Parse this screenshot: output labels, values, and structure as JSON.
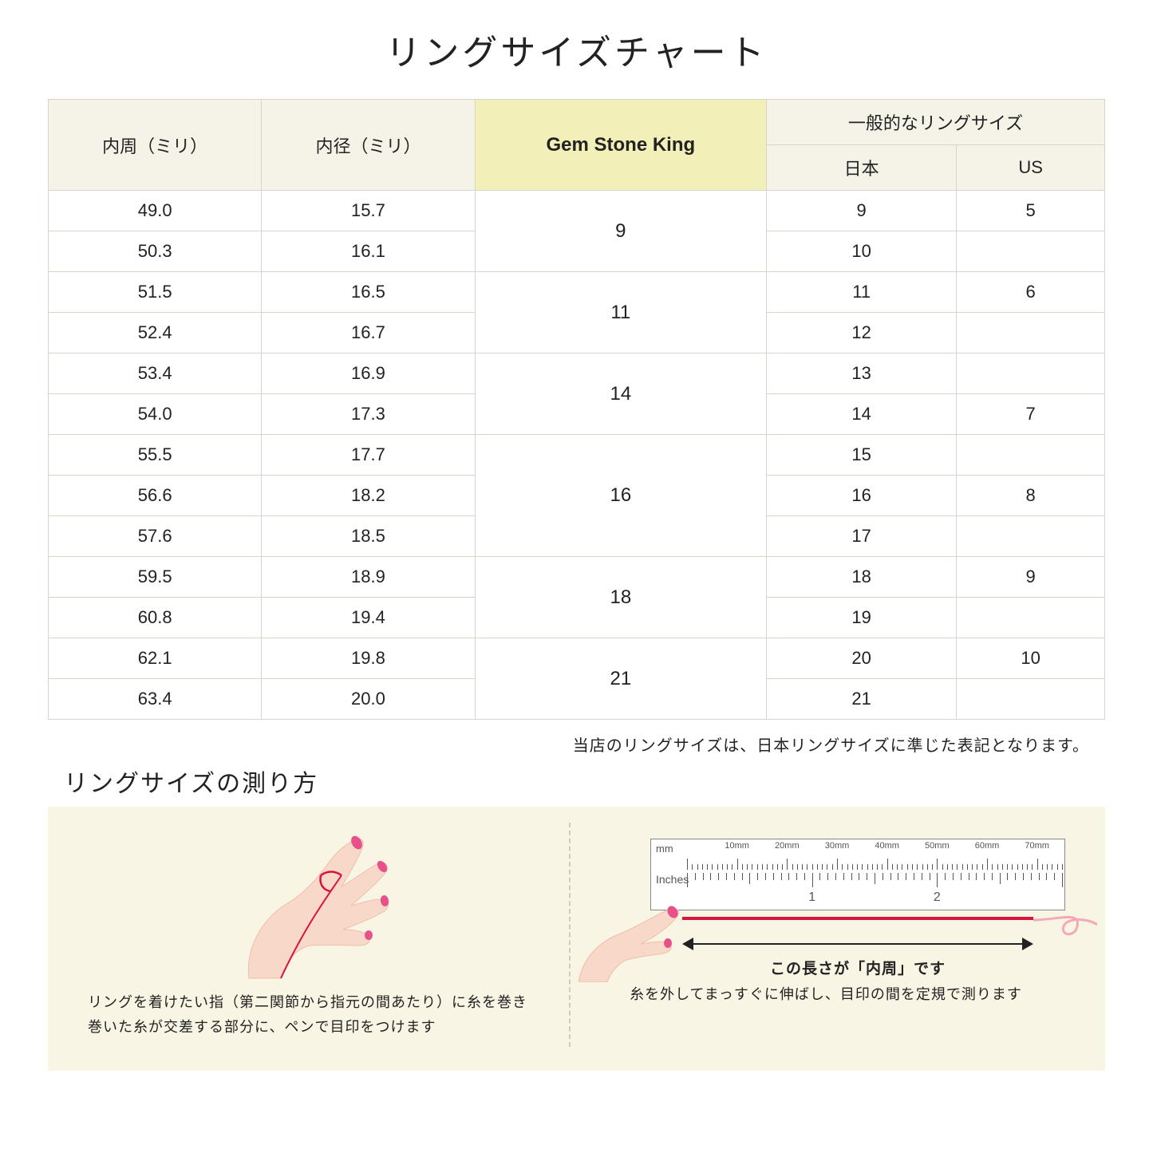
{
  "title": "リングサイズチャート",
  "table": {
    "headers": {
      "col1": "内周（ミリ）",
      "col2": "内径（ミリ）",
      "gsk": "Gem Stone King",
      "general": "一般的なリングサイズ",
      "jp": "日本",
      "us": "US"
    },
    "groups": [
      {
        "gsk": "9",
        "rows": [
          {
            "c": "49.0",
            "d": "15.7",
            "jp": "9",
            "us": "5"
          },
          {
            "c": "50.3",
            "d": "16.1",
            "jp": "10",
            "us": ""
          }
        ]
      },
      {
        "gsk": "11",
        "rows": [
          {
            "c": "51.5",
            "d": "16.5",
            "jp": "11",
            "us": "6"
          },
          {
            "c": "52.4",
            "d": "16.7",
            "jp": "12",
            "us": ""
          }
        ]
      },
      {
        "gsk": "14",
        "rows": [
          {
            "c": "53.4",
            "d": "16.9",
            "jp": "13",
            "us": ""
          },
          {
            "c": "54.0",
            "d": "17.3",
            "jp": "14",
            "us": "7"
          }
        ]
      },
      {
        "gsk": "16",
        "rows": [
          {
            "c": "55.5",
            "d": "17.7",
            "jp": "15",
            "us": ""
          },
          {
            "c": "56.6",
            "d": "18.2",
            "jp": "16",
            "us": "8"
          },
          {
            "c": "57.6",
            "d": "18.5",
            "jp": "17",
            "us": ""
          }
        ]
      },
      {
        "gsk": "18",
        "rows": [
          {
            "c": "59.5",
            "d": "18.9",
            "jp": "18",
            "us": "9"
          },
          {
            "c": "60.8",
            "d": "19.4",
            "jp": "19",
            "us": ""
          }
        ]
      },
      {
        "gsk": "21",
        "rows": [
          {
            "c": "62.1",
            "d": "19.8",
            "jp": "20",
            "us": "10"
          },
          {
            "c": "63.4",
            "d": "20.0",
            "jp": "21",
            "us": ""
          }
        ]
      }
    ]
  },
  "note": "当店のリングサイズは、日本リングサイズに準じた表記となります。",
  "howto": {
    "title": "リングサイズの測り方",
    "step1_line1": "リングを着けたい指（第二関節から指元の間あたり）に糸を巻き",
    "step1_line2": "巻いた糸が交差する部分に、ペンで目印をつけます",
    "step2_caption": "糸を外してまっすぐに伸ばし、目印の間を定規で測ります",
    "arrow_label": "この長さが「内周」です",
    "ruler_mm": "mm",
    "ruler_in": "Inches",
    "mm_labels": [
      "10mm",
      "20mm",
      "30mm",
      "40mm",
      "50mm",
      "60mm",
      "70mm"
    ],
    "in_labels": [
      "1",
      "2"
    ]
  },
  "colors": {
    "header_bg": "#f5f2e8",
    "gsk_bg": "#f2f0b8",
    "border": "#d8d4c8",
    "howto_bg": "#f9f5e4",
    "skin": "#f8d8c8",
    "skin_shadow": "#eebfa8",
    "nail": "#e8508a",
    "thread": "#d6143c"
  }
}
